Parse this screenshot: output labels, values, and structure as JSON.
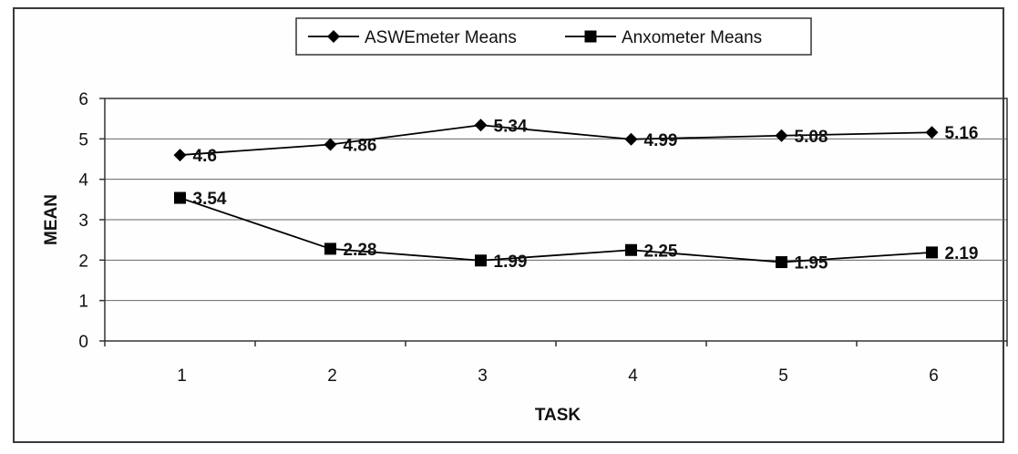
{
  "chart_data": {
    "type": "line",
    "title": "",
    "xlabel": "TASK",
    "ylabel": "MEAN",
    "categories": [
      "1",
      "2",
      "3",
      "4",
      "5",
      "6"
    ],
    "ylim": [
      0,
      6
    ],
    "yticks": [
      "0",
      "1",
      "2",
      "3",
      "4",
      "5",
      "6"
    ],
    "grid": "horizontal",
    "legend_position": "top",
    "series": [
      {
        "name": "ASWEmeter Means",
        "marker": "diamond",
        "color": "#000000",
        "values": [
          4.6,
          4.86,
          5.34,
          4.99,
          5.08,
          5.16
        ],
        "labels": [
          "4.6",
          "4.86",
          "5.34",
          "4.99",
          "5.08",
          "5.16"
        ]
      },
      {
        "name": "Anxometer Means",
        "marker": "square",
        "color": "#000000",
        "values": [
          3.54,
          2.28,
          1.99,
          2.25,
          1.95,
          2.19
        ],
        "labels": [
          "3.54",
          "2.28",
          "1.99",
          "2.25",
          "1.95",
          "2.19"
        ]
      }
    ]
  }
}
